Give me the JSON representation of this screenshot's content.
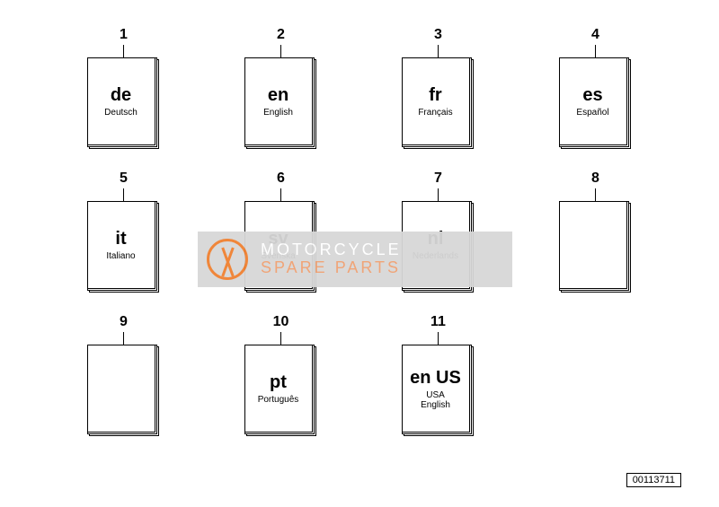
{
  "reference": "00113711",
  "watermark": {
    "line1": "MOTORCYCLE",
    "line2": "SPARE PARTS"
  },
  "grid": {
    "columns": 4,
    "rows": 3,
    "items": [
      {
        "num": "1",
        "code": "de",
        "lang": "Deutsch"
      },
      {
        "num": "2",
        "code": "en",
        "lang": "English"
      },
      {
        "num": "3",
        "code": "fr",
        "lang": "Français"
      },
      {
        "num": "4",
        "code": "es",
        "lang": "Español"
      },
      {
        "num": "5",
        "code": "it",
        "lang": "Italiano"
      },
      {
        "num": "6",
        "code": "sv",
        "lang": "Svenska"
      },
      {
        "num": "7",
        "code": "nl",
        "lang": "Nederlands"
      },
      {
        "num": "8",
        "code": "",
        "lang": ""
      },
      {
        "num": "9",
        "code": "",
        "lang": ""
      },
      {
        "num": "10",
        "code": "pt",
        "lang": "Português"
      },
      {
        "num": "11",
        "code": "en US",
        "lang": "USA\nEnglish"
      }
    ]
  },
  "style": {
    "background": "#ffffff",
    "border_color": "#000000",
    "text_color": "#000000",
    "code_fontsize": 20,
    "lang_fontsize": 10,
    "num_fontsize": 16,
    "watermark_bg": "#d7d7d7",
    "watermark_accent": "#f08030",
    "watermark_text": "#ffffff"
  }
}
